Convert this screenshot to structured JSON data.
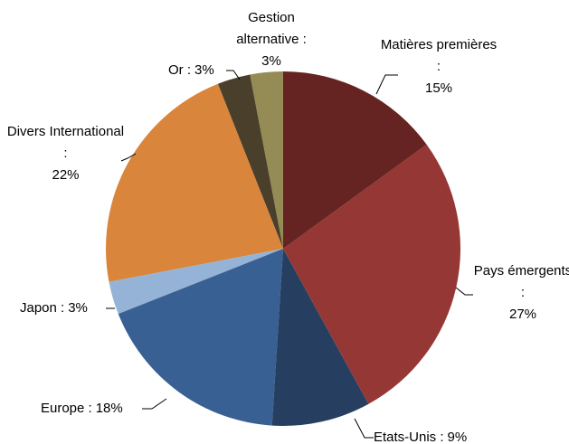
{
  "chart_data": {
    "type": "pie",
    "categories": [
      "Matières premières :",
      "Pays émergents :",
      "Etats-Unis :",
      "Europe :",
      "Japon :",
      "Divers International :",
      "Or :",
      "Gestion alternative :"
    ],
    "values": [
      15,
      27,
      9,
      18,
      3,
      22,
      3,
      3
    ],
    "value_labels": [
      "15%",
      "27%",
      "9%",
      "18%",
      "3%",
      "22%",
      "3%",
      "3%"
    ],
    "colors": [
      "#652421",
      "#953735",
      "#263f60",
      "#386093",
      "#95b3d7",
      "#d9853b",
      "#4a3f2b",
      "#958b55"
    ]
  }
}
